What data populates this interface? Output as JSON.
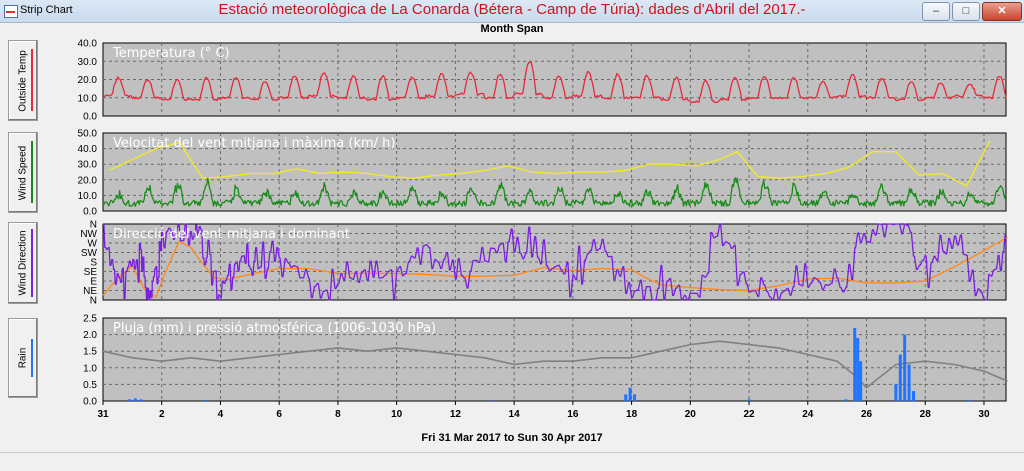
{
  "window": {
    "app_title": "Strip Chart",
    "chart_title": "Estació meteorològica de La Conarda (Bétera - Camp de Túria): dades d'Abril del 2017.-",
    "subtitle": "Month Span",
    "date_range": "Fri 31 Mar 2017  to  Sun 30 Apr 2017",
    "buttons": {
      "minimize_icon": "minimize-icon",
      "maximize_icon": "maximize-icon",
      "close_icon": "close-icon"
    }
  },
  "side_buttons": [
    {
      "label": "Outside Temp",
      "color": "#e8283c"
    },
    {
      "label": "Wind Speed",
      "color": "#1a8a1a"
    },
    {
      "label": "Wind Direction",
      "color": "#7b1fe0"
    },
    {
      "label": "Rain",
      "color": "#2074ff"
    }
  ],
  "chart_data": [
    {
      "type": "line",
      "title": "Temperatura (° C)",
      "ylim": [
        0,
        40
      ],
      "yticks": [
        "0.0",
        "10.0",
        "20.0",
        "30.0",
        "40.0"
      ],
      "grid": true,
      "x_label_note": "day of month, starting 31 Mar",
      "series": [
        {
          "color": "#e8283c",
          "day_max": [
            21,
            20,
            20,
            21,
            21,
            19,
            22,
            24,
            22,
            22,
            21,
            23,
            24,
            23,
            30,
            22,
            24,
            23,
            22,
            21,
            19,
            21,
            22,
            21,
            19,
            23,
            21,
            19,
            18,
            17,
            22
          ],
          "day_min": [
            11,
            10,
            9,
            9,
            10,
            9,
            10,
            11,
            10,
            9,
            10,
            11,
            12,
            10,
            12,
            10,
            11,
            10,
            10,
            9,
            8,
            9,
            10,
            10,
            10,
            11,
            10,
            9,
            10,
            11,
            10
          ]
        }
      ]
    },
    {
      "type": "line",
      "title": "Velocitat del vent mitjana i màxima (km/ h)",
      "ylim": [
        0,
        50
      ],
      "yticks": [
        "0.0",
        "10.0",
        "20.0",
        "30.0",
        "40.0",
        "50.0"
      ],
      "grid": true,
      "series": [
        {
          "color": "#f0ea2a",
          "x": [
            0.2,
            1,
            1.8,
            2.6,
            3.4,
            4.2,
            5,
            5.8,
            6.6,
            7.4,
            8.2,
            9,
            9.8,
            10.6,
            11.4,
            12.2,
            13,
            13.8,
            14.6,
            15.4,
            16.2,
            17,
            17.8,
            18.6,
            19.4,
            20.2,
            21,
            21.6,
            22.3,
            23,
            23.8,
            24.6,
            25.4,
            26.2,
            27,
            27.8,
            28.6,
            29.4,
            30.2
          ],
          "values": [
            26,
            33,
            40,
            44,
            21,
            22,
            24,
            24,
            27,
            24,
            25,
            24,
            22,
            21,
            23,
            24,
            26,
            29,
            25,
            24,
            25,
            25,
            26,
            30,
            30,
            29,
            33,
            38,
            22,
            21,
            22,
            24,
            28,
            38,
            38,
            23,
            24,
            16,
            45
          ]
        },
        {
          "color": "#1a8a1a",
          "day_peaks": [
            9,
            12,
            15,
            17,
            12,
            10,
            11,
            13,
            10,
            11,
            12,
            10,
            12,
            14,
            11,
            13,
            12,
            10,
            11,
            12,
            15,
            18,
            16,
            14,
            11,
            10,
            15,
            12,
            11,
            9,
            16
          ]
        }
      ]
    },
    {
      "type": "line",
      "title": "Direcció del vent mitjana i dominant",
      "yticks": [
        "N",
        "NE",
        "E",
        "SE",
        "S",
        "SW",
        "W",
        "NW",
        "N"
      ],
      "grid": true,
      "series": [
        {
          "color": "#ff8a1e",
          "x": [
            0,
            0.5,
            1,
            1.4,
            1.8,
            2.2,
            2.6,
            3,
            3.4,
            3.8,
            4.3,
            5,
            6,
            7,
            8,
            9,
            10,
            11,
            12,
            13,
            14,
            15,
            16,
            17,
            18,
            18.5,
            19,
            20,
            21,
            22,
            23,
            24,
            25,
            26,
            27,
            28,
            29,
            30,
            30.8
          ],
          "values": [
            0.5,
            2.3,
            3.6,
            1.2,
            0.3,
            3.5,
            6.2,
            5.5,
            3.8,
            2.3,
            2.2,
            2.7,
            3.3,
            3.3,
            2.8,
            2.8,
            2.8,
            2.7,
            2.5,
            2.5,
            2.6,
            3.4,
            3.1,
            3.3,
            3.2,
            2.3,
            1.6,
            1.3,
            1.1,
            1.0,
            1.5,
            2.2,
            2.3,
            1.8,
            1.8,
            2.0,
            3.5,
            5.2,
            6.6
          ]
        },
        {
          "color": "#7b1fe0",
          "x": [
            0,
            0.6,
            1.2,
            1.6,
            2,
            2.8,
            3.4,
            4,
            4.6,
            5.2,
            6,
            7,
            8,
            9,
            10,
            11,
            12,
            13,
            14,
            15,
            16,
            17,
            18,
            19,
            20,
            21,
            22,
            23,
            24,
            25,
            26,
            27,
            28,
            29,
            30,
            30.8
          ],
          "values": [
            6.5,
            2.0,
            3.8,
            0.3,
            6.8,
            7.5,
            6.5,
            1.0,
            4.5,
            3.5,
            5.0,
            2.0,
            1.5,
            3.0,
            2.5,
            6.0,
            2.0,
            4.5,
            7.0,
            4.0,
            2.5,
            6.0,
            1.0,
            1.5,
            0.5,
            7.5,
            1.0,
            0.8,
            2.0,
            1.2,
            6.5,
            7.8,
            3.0,
            6.5,
            0.5,
            6.8
          ]
        }
      ]
    },
    {
      "type": "line",
      "title": "Pluja (mm) i pressió atmosférica (1006-1030 hPa)",
      "ylim": [
        0,
        2.5
      ],
      "yticks": [
        "0.0",
        "0.5",
        "1.0",
        "1.5",
        "2.0",
        "2.5"
      ],
      "grid": true,
      "series": [
        {
          "color": "#808080",
          "x": [
            0,
            1,
            2,
            3,
            4,
            5,
            6,
            7,
            8,
            9,
            10,
            11,
            12,
            13,
            14,
            15,
            16,
            17,
            18,
            19,
            20,
            21,
            22,
            23,
            24,
            25,
            25.7,
            26,
            27,
            28,
            29,
            30,
            30.8
          ],
          "values": [
            1.5,
            1.3,
            1.2,
            1.3,
            1.2,
            1.3,
            1.4,
            1.5,
            1.6,
            1.5,
            1.6,
            1.5,
            1.4,
            1.3,
            1.1,
            1.2,
            1.2,
            1.3,
            1.3,
            1.5,
            1.7,
            1.8,
            1.7,
            1.6,
            1.4,
            1.2,
            0.7,
            0.4,
            1.1,
            1.2,
            1.1,
            0.9,
            0.6
          ]
        },
        {
          "color": "#2074ff",
          "type": "bar",
          "x": [
            0.9,
            1.1,
            1.3,
            3.5,
            13.2,
            17.8,
            17.95,
            18.1,
            22,
            25.3,
            25.6,
            25.7,
            25.8,
            27.0,
            27.15,
            27.3,
            27.45,
            27.6,
            29.5
          ],
          "values": [
            0.05,
            0.08,
            0.05,
            0.03,
            0.03,
            0.2,
            0.4,
            0.2,
            0.05,
            0.05,
            2.2,
            1.9,
            1.2,
            0.5,
            1.4,
            2.0,
            1.1,
            0.3,
            0.03
          ]
        }
      ]
    }
  ],
  "x_axis": {
    "min": 0,
    "max": 30.75,
    "ticks": [
      {
        "x": 0,
        "label": "31"
      },
      {
        "x": 2,
        "label": "2"
      },
      {
        "x": 4,
        "label": "4"
      },
      {
        "x": 6,
        "label": "6"
      },
      {
        "x": 8,
        "label": "8"
      },
      {
        "x": 10,
        "label": "10"
      },
      {
        "x": 12,
        "label": "12"
      },
      {
        "x": 14,
        "label": "14"
      },
      {
        "x": 16,
        "label": "16"
      },
      {
        "x": 18,
        "label": "18"
      },
      {
        "x": 20,
        "label": "20"
      },
      {
        "x": 22,
        "label": "22"
      },
      {
        "x": 24,
        "label": "24"
      },
      {
        "x": 26,
        "label": "26"
      },
      {
        "x": 28,
        "label": "28"
      },
      {
        "x": 30,
        "label": "30"
      }
    ]
  }
}
